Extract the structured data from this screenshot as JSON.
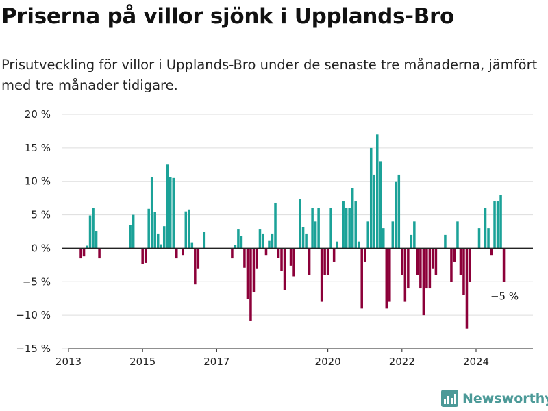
{
  "title": "Priserna på villor sjönk i Upplands-Bro",
  "subtitle": "Prisutveckling för villor i Upplands-Bro under de senaste tre månaderna, jämfört med tre månader tidigare.",
  "brand": "Newsworthy",
  "colors": {
    "positive": "#1ba298",
    "negative": "#8c0039",
    "grid": "#dddddd",
    "axis": "#222222",
    "brand": "#4c9a98"
  },
  "chart_data": {
    "type": "bar",
    "x_unit": "month",
    "ylim": [
      -15,
      20
    ],
    "yticks": [
      -15,
      -10,
      -5,
      0,
      5,
      10,
      15,
      20
    ],
    "ytick_labels": [
      "−15 %",
      "−10 %",
      "−5 %",
      "0 %",
      "5 %",
      "10 %",
      "15 %",
      "20 %"
    ],
    "xticks": [
      "2013-01",
      "2015-01",
      "2017-01",
      "2020-01",
      "2022-01",
      "2024-01"
    ],
    "xtick_labels": [
      "2013",
      "2015",
      "2017",
      "2020",
      "2022",
      "2024"
    ],
    "grid": true,
    "points": [
      {
        "x": "2013-05",
        "y": -1.5
      },
      {
        "x": "2013-06",
        "y": -1.2
      },
      {
        "x": "2013-07",
        "y": 0.4
      },
      {
        "x": "2013-08",
        "y": 4.9
      },
      {
        "x": "2013-09",
        "y": 6.0
      },
      {
        "x": "2013-10",
        "y": 2.6
      },
      {
        "x": "2013-11",
        "y": -1.5
      },
      {
        "x": "2014-09",
        "y": 3.5
      },
      {
        "x": "2014-10",
        "y": 5.0
      },
      {
        "x": "2015-01",
        "y": -2.4
      },
      {
        "x": "2015-02",
        "y": -2.2
      },
      {
        "x": "2015-03",
        "y": 5.9
      },
      {
        "x": "2015-04",
        "y": 10.6
      },
      {
        "x": "2015-05",
        "y": 5.4
      },
      {
        "x": "2015-06",
        "y": 2.2
      },
      {
        "x": "2015-07",
        "y": 0.6
      },
      {
        "x": "2015-08",
        "y": 3.3
      },
      {
        "x": "2015-09",
        "y": 12.5
      },
      {
        "x": "2015-10",
        "y": 10.6
      },
      {
        "x": "2015-11",
        "y": 10.5
      },
      {
        "x": "2015-12",
        "y": -1.5
      },
      {
        "x": "2016-02",
        "y": -1.0
      },
      {
        "x": "2016-03",
        "y": 5.5
      },
      {
        "x": "2016-04",
        "y": 5.8
      },
      {
        "x": "2016-05",
        "y": 0.8
      },
      {
        "x": "2016-06",
        "y": -5.4
      },
      {
        "x": "2016-07",
        "y": -3.0
      },
      {
        "x": "2016-09",
        "y": 2.4
      },
      {
        "x": "2017-06",
        "y": -1.5
      },
      {
        "x": "2017-07",
        "y": 0.5
      },
      {
        "x": "2017-08",
        "y": 2.8
      },
      {
        "x": "2017-09",
        "y": 1.8
      },
      {
        "x": "2017-10",
        "y": -2.9
      },
      {
        "x": "2017-11",
        "y": -7.6
      },
      {
        "x": "2017-12",
        "y": -10.8
      },
      {
        "x": "2018-01",
        "y": -6.6
      },
      {
        "x": "2018-02",
        "y": -3.0
      },
      {
        "x": "2018-03",
        "y": 2.8
      },
      {
        "x": "2018-04",
        "y": 2.2
      },
      {
        "x": "2018-05",
        "y": -1.0
      },
      {
        "x": "2018-06",
        "y": 1.1
      },
      {
        "x": "2018-07",
        "y": 2.2
      },
      {
        "x": "2018-08",
        "y": 6.8
      },
      {
        "x": "2018-09",
        "y": -1.4
      },
      {
        "x": "2018-10",
        "y": -3.4
      },
      {
        "x": "2018-11",
        "y": -6.3
      },
      {
        "x": "2019-01",
        "y": -2.6
      },
      {
        "x": "2019-02",
        "y": -4.2
      },
      {
        "x": "2019-04",
        "y": 7.4
      },
      {
        "x": "2019-05",
        "y": 3.2
      },
      {
        "x": "2019-06",
        "y": 2.2
      },
      {
        "x": "2019-07",
        "y": -4.0
      },
      {
        "x": "2019-08",
        "y": 6.0
      },
      {
        "x": "2019-09",
        "y": 4.0
      },
      {
        "x": "2019-10",
        "y": 6.0
      },
      {
        "x": "2019-11",
        "y": -8.0
      },
      {
        "x": "2019-12",
        "y": -4.0
      },
      {
        "x": "2020-01",
        "y": -4.0
      },
      {
        "x": "2020-02",
        "y": 6.0
      },
      {
        "x": "2020-03",
        "y": -2.0
      },
      {
        "x": "2020-04",
        "y": 1.0
      },
      {
        "x": "2020-06",
        "y": 7.0
      },
      {
        "x": "2020-07",
        "y": 6.0
      },
      {
        "x": "2020-08",
        "y": 6.0
      },
      {
        "x": "2020-09",
        "y": 9.0
      },
      {
        "x": "2020-10",
        "y": 7.0
      },
      {
        "x": "2020-11",
        "y": 1.0
      },
      {
        "x": "2020-12",
        "y": -9.0
      },
      {
        "x": "2021-01",
        "y": -2.0
      },
      {
        "x": "2021-02",
        "y": 4.0
      },
      {
        "x": "2021-03",
        "y": 15.0
      },
      {
        "x": "2021-04",
        "y": 11.0
      },
      {
        "x": "2021-05",
        "y": 17.0
      },
      {
        "x": "2021-06",
        "y": 13.0
      },
      {
        "x": "2021-07",
        "y": 3.0
      },
      {
        "x": "2021-08",
        "y": -9.0
      },
      {
        "x": "2021-09",
        "y": -8.0
      },
      {
        "x": "2021-10",
        "y": 4.0
      },
      {
        "x": "2021-11",
        "y": 10.0
      },
      {
        "x": "2021-12",
        "y": 11.0
      },
      {
        "x": "2022-01",
        "y": -4.0
      },
      {
        "x": "2022-02",
        "y": -8.0
      },
      {
        "x": "2022-03",
        "y": -6.0
      },
      {
        "x": "2022-04",
        "y": 2.0
      },
      {
        "x": "2022-05",
        "y": 4.0
      },
      {
        "x": "2022-06",
        "y": -4.0
      },
      {
        "x": "2022-07",
        "y": -6.0
      },
      {
        "x": "2022-08",
        "y": -10.0
      },
      {
        "x": "2022-09",
        "y": -6.0
      },
      {
        "x": "2022-10",
        "y": -6.0
      },
      {
        "x": "2022-11",
        "y": -3.0
      },
      {
        "x": "2022-12",
        "y": -4.0
      },
      {
        "x": "2023-03",
        "y": 2.0
      },
      {
        "x": "2023-05",
        "y": -5.0
      },
      {
        "x": "2023-06",
        "y": -2.0
      },
      {
        "x": "2023-07",
        "y": 4.0
      },
      {
        "x": "2023-08",
        "y": -4.0
      },
      {
        "x": "2023-09",
        "y": -7.0
      },
      {
        "x": "2023-10",
        "y": -12.0
      },
      {
        "x": "2023-11",
        "y": -5.0
      },
      {
        "x": "2024-02",
        "y": 3.0
      },
      {
        "x": "2024-04",
        "y": 6.0
      },
      {
        "x": "2024-05",
        "y": 3.0
      },
      {
        "x": "2024-06",
        "y": -1.0
      },
      {
        "x": "2024-07",
        "y": 7.0
      },
      {
        "x": "2024-08",
        "y": 7.0
      },
      {
        "x": "2024-09",
        "y": 8.0
      },
      {
        "x": "2024-10",
        "y": -5.0
      }
    ],
    "annotation": {
      "x": "2024-10",
      "label": "−5 %"
    }
  }
}
